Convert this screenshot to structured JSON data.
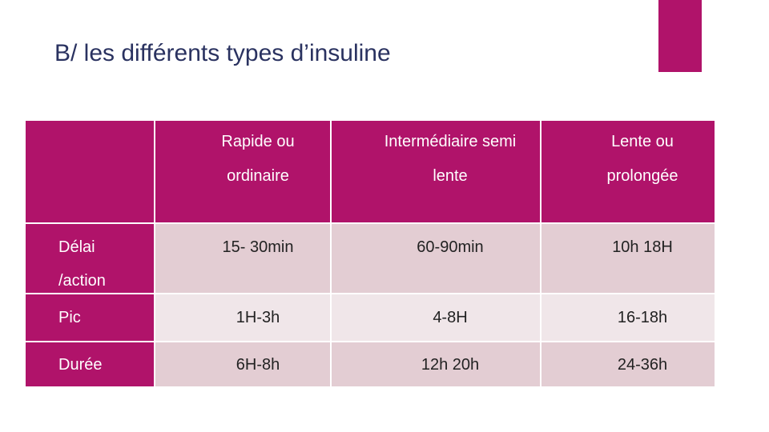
{
  "title": "B/ les différents types d’insuline",
  "table": {
    "columns": [
      [
        "Rapide ou",
        "ordinaire"
      ],
      [
        "Intermédiaire semi",
        "lente"
      ],
      [
        "Lente ou",
        "prolongée"
      ]
    ],
    "rows": [
      {
        "label": [
          "Délai",
          "/action"
        ],
        "cells": [
          "15- 30min",
          "60-90min",
          "10h 18H"
        ]
      },
      {
        "label": [
          "Pic"
        ],
        "cells": [
          "1H-3h",
          "4-8H",
          "16-18h"
        ]
      },
      {
        "label": [
          "Durée"
        ],
        "cells": [
          "6H-8h",
          "12h 20h",
          "24-36h"
        ]
      }
    ]
  }
}
